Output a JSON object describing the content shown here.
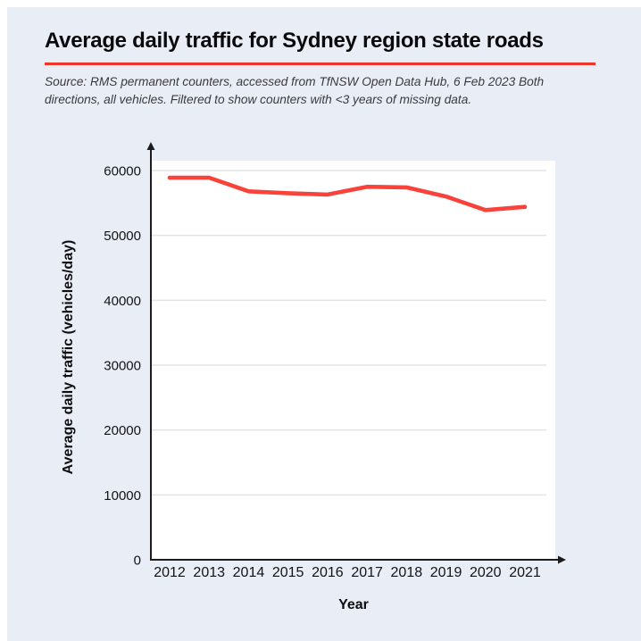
{
  "card": {
    "divider_color": "#ee3629",
    "background_color": "#e9eef6",
    "source_lines": [
      "Source: RMS permanent counters, accessed from TfNSW Open Data Hub, 6 Feb 2023 Both",
      "directions, all vehicles. Filtered to show counters with <3 years of missing data."
    ]
  },
  "chart_data": {
    "type": "line",
    "title": "Average daily traffic for Sydney region state roads",
    "xlabel": "Year",
    "ylabel": "Average daily traffic (vehicles/day)",
    "x": [
      2012,
      2013,
      2014,
      2015,
      2016,
      2017,
      2018,
      2019,
      2020,
      2021
    ],
    "series": [
      {
        "name": "Average daily traffic",
        "color": "#f8423a",
        "values": [
          58900,
          58900,
          56800,
          56500,
          56300,
          57500,
          57400,
          56000,
          53900,
          54400
        ]
      }
    ],
    "ylim": [
      0,
      60000
    ],
    "yticks": [
      0,
      10000,
      20000,
      30000,
      40000,
      50000,
      60000
    ],
    "grid": "horizontal",
    "legend": "none",
    "plot_background": "#ffffff",
    "gridline_color": "#e3e3e7",
    "axis_color": "#1c1c1f"
  }
}
